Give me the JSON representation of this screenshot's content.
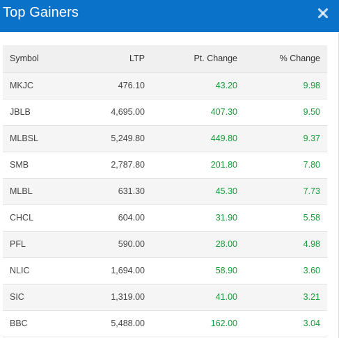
{
  "dialog": {
    "title": "Top Gainers",
    "close_icon": "close-icon",
    "header_color": "#0a72c9"
  },
  "table": {
    "columns": [
      "Symbol",
      "LTP",
      "Pt. Change",
      "% Change"
    ],
    "rows": [
      [
        "MKJC",
        "476.10",
        "43.20",
        "9.98"
      ],
      [
        "JBLB",
        "4,695.00",
        "407.30",
        "9.50"
      ],
      [
        "MLBSL",
        "5,249.80",
        "449.80",
        "9.37"
      ],
      [
        "SMB",
        "2,787.80",
        "201.80",
        "7.80"
      ],
      [
        "MLBL",
        "631.30",
        "45.30",
        "7.73"
      ],
      [
        "CHCL",
        "604.00",
        "31.90",
        "5.58"
      ],
      [
        "PFL",
        "590.00",
        "28.00",
        "4.98"
      ],
      [
        "NLIC",
        "1,694.00",
        "58.90",
        "3.60"
      ],
      [
        "SIC",
        "1,319.00",
        "41.00",
        "3.21"
      ],
      [
        "BBC",
        "5,488.00",
        "162.00",
        "3.04"
      ]
    ],
    "positive_color": "#1a9a3a"
  }
}
